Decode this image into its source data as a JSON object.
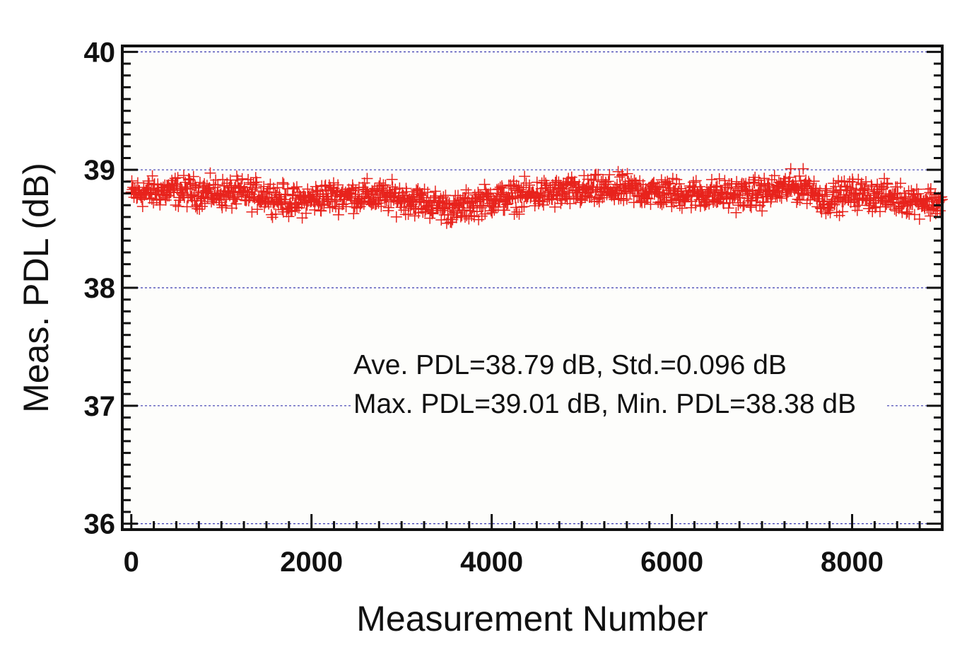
{
  "chart_data": {
    "type": "scatter",
    "title": "",
    "xlabel": "Measurement Number",
    "ylabel": "Meas. PDL (dB)",
    "xlim": [
      -100,
      9000
    ],
    "ylim": [
      35.95,
      40.05
    ],
    "x_ticks": [
      0,
      2000,
      4000,
      6000,
      8000
    ],
    "x_tick_labels": [
      "0",
      "2000",
      "4000",
      "6000",
      "8000"
    ],
    "y_ticks": [
      36,
      37,
      38,
      39,
      40
    ],
    "y_tick_labels": [
      "36",
      "37",
      "38",
      "39",
      "40"
    ],
    "grid": "y-major-dotted",
    "marker": "plus",
    "colors": {
      "points": "#e8231c",
      "grid": "#3a3ab0",
      "axis": "#111111"
    },
    "annotations": [
      "Ave. PDL=38.79 dB, Std.=0.096 dB",
      "Max. PDL=39.01 dB, Min. PDL=38.38 dB"
    ],
    "series": [
      {
        "x_start": 0,
        "x_end": 9000,
        "count": 9000,
        "mean": 38.79,
        "std": 0.096,
        "max": 39.01,
        "min": 38.38,
        "trend_x": [
          0,
          500,
          1000,
          1500,
          1800,
          2200,
          2600,
          3000,
          3300,
          3600,
          3900,
          4300,
          4700,
          5100,
          5500,
          6000,
          6500,
          7000,
          7300,
          7500,
          7700,
          8000,
          8500,
          9000
        ],
        "trend_y": [
          38.8,
          38.82,
          38.8,
          38.79,
          38.72,
          38.78,
          38.78,
          38.76,
          38.72,
          38.66,
          38.74,
          38.78,
          38.8,
          38.82,
          38.83,
          38.8,
          38.79,
          38.8,
          38.85,
          38.86,
          38.74,
          38.8,
          38.76,
          38.72
        ]
      }
    ]
  }
}
